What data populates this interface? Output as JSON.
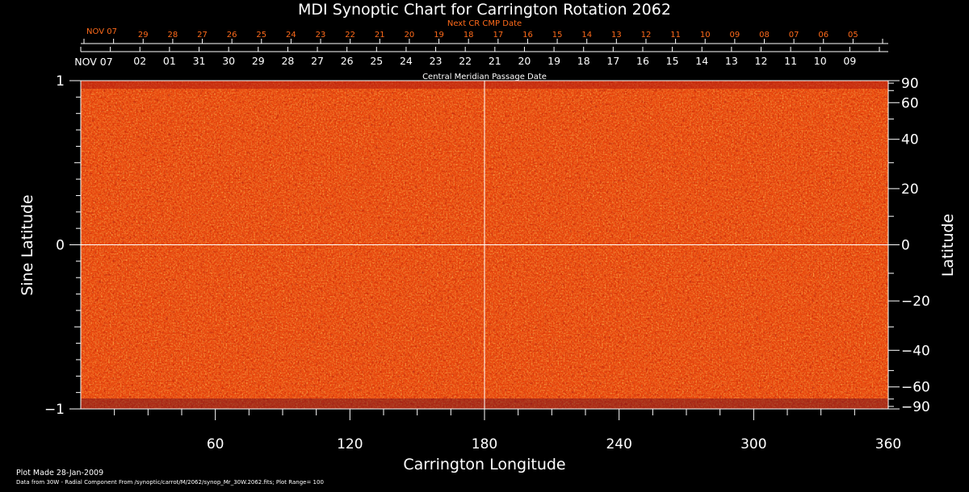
{
  "chart_data": {
    "type": "heatmap",
    "title": "MDI Synoptic Chart for Carrington Rotation 2062",
    "xlabel": "Carrington Longitude",
    "ylabel_left": "Sine Latitude",
    "ylabel_right": "Latitude",
    "xlim": [
      0,
      360
    ],
    "ylim": [
      -1,
      1
    ],
    "x_ticks": [
      60,
      120,
      180,
      240,
      300,
      360
    ],
    "y_ticks_left": [
      {
        "value": 1,
        "label": "1"
      },
      {
        "value": 0,
        "label": "0"
      },
      {
        "value": -1,
        "label": "−1"
      }
    ],
    "y_ticks_right": [
      {
        "deg": 90,
        "label": "90"
      },
      {
        "deg": 60,
        "label": "60"
      },
      {
        "deg": 40,
        "label": "40"
      },
      {
        "deg": 20,
        "label": "20"
      },
      {
        "deg": 0,
        "label": "0"
      },
      {
        "deg": -20,
        "label": "−20"
      },
      {
        "deg": -40,
        "label": "−40"
      },
      {
        "deg": -60,
        "label": "−60"
      },
      {
        "deg": -90,
        "label": "−90"
      }
    ],
    "cmp_axis_label": "Central Meridian Passage Date",
    "cmp_start_label": "NOV 07",
    "cmp_dates": [
      "02",
      "01",
      "31",
      "30",
      "29",
      "28",
      "27",
      "26",
      "25",
      "24",
      "23",
      "22",
      "21",
      "20",
      "19",
      "18",
      "17",
      "16",
      "15",
      "14",
      "13",
      "12",
      "11",
      "10",
      "09"
    ],
    "next_cr_axis_label": "Next CR CMP Date",
    "next_cr_start_label": "NOV 07",
    "next_cr_dates": [
      "29",
      "28",
      "27",
      "26",
      "25",
      "24",
      "23",
      "22",
      "21",
      "20",
      "19",
      "18",
      "17",
      "16",
      "15",
      "14",
      "13",
      "12",
      "11",
      "10",
      "09",
      "08",
      "07",
      "06",
      "05"
    ],
    "grid_lines": {
      "longitude": 180,
      "sine_latitude": 0
    },
    "colormap": [
      "#1a0a6e",
      "#8a1010",
      "#d93a0a",
      "#f4680f",
      "#ffa22a",
      "#ffe07a"
    ]
  },
  "footer": {
    "plot_made": "Plot Made 28-Jan-2009",
    "source": "Data from 30W - Radial Component From /synoptic/carrot/M/2062/synop_Mr_30W.2062.fits; Plot Range=  100"
  }
}
